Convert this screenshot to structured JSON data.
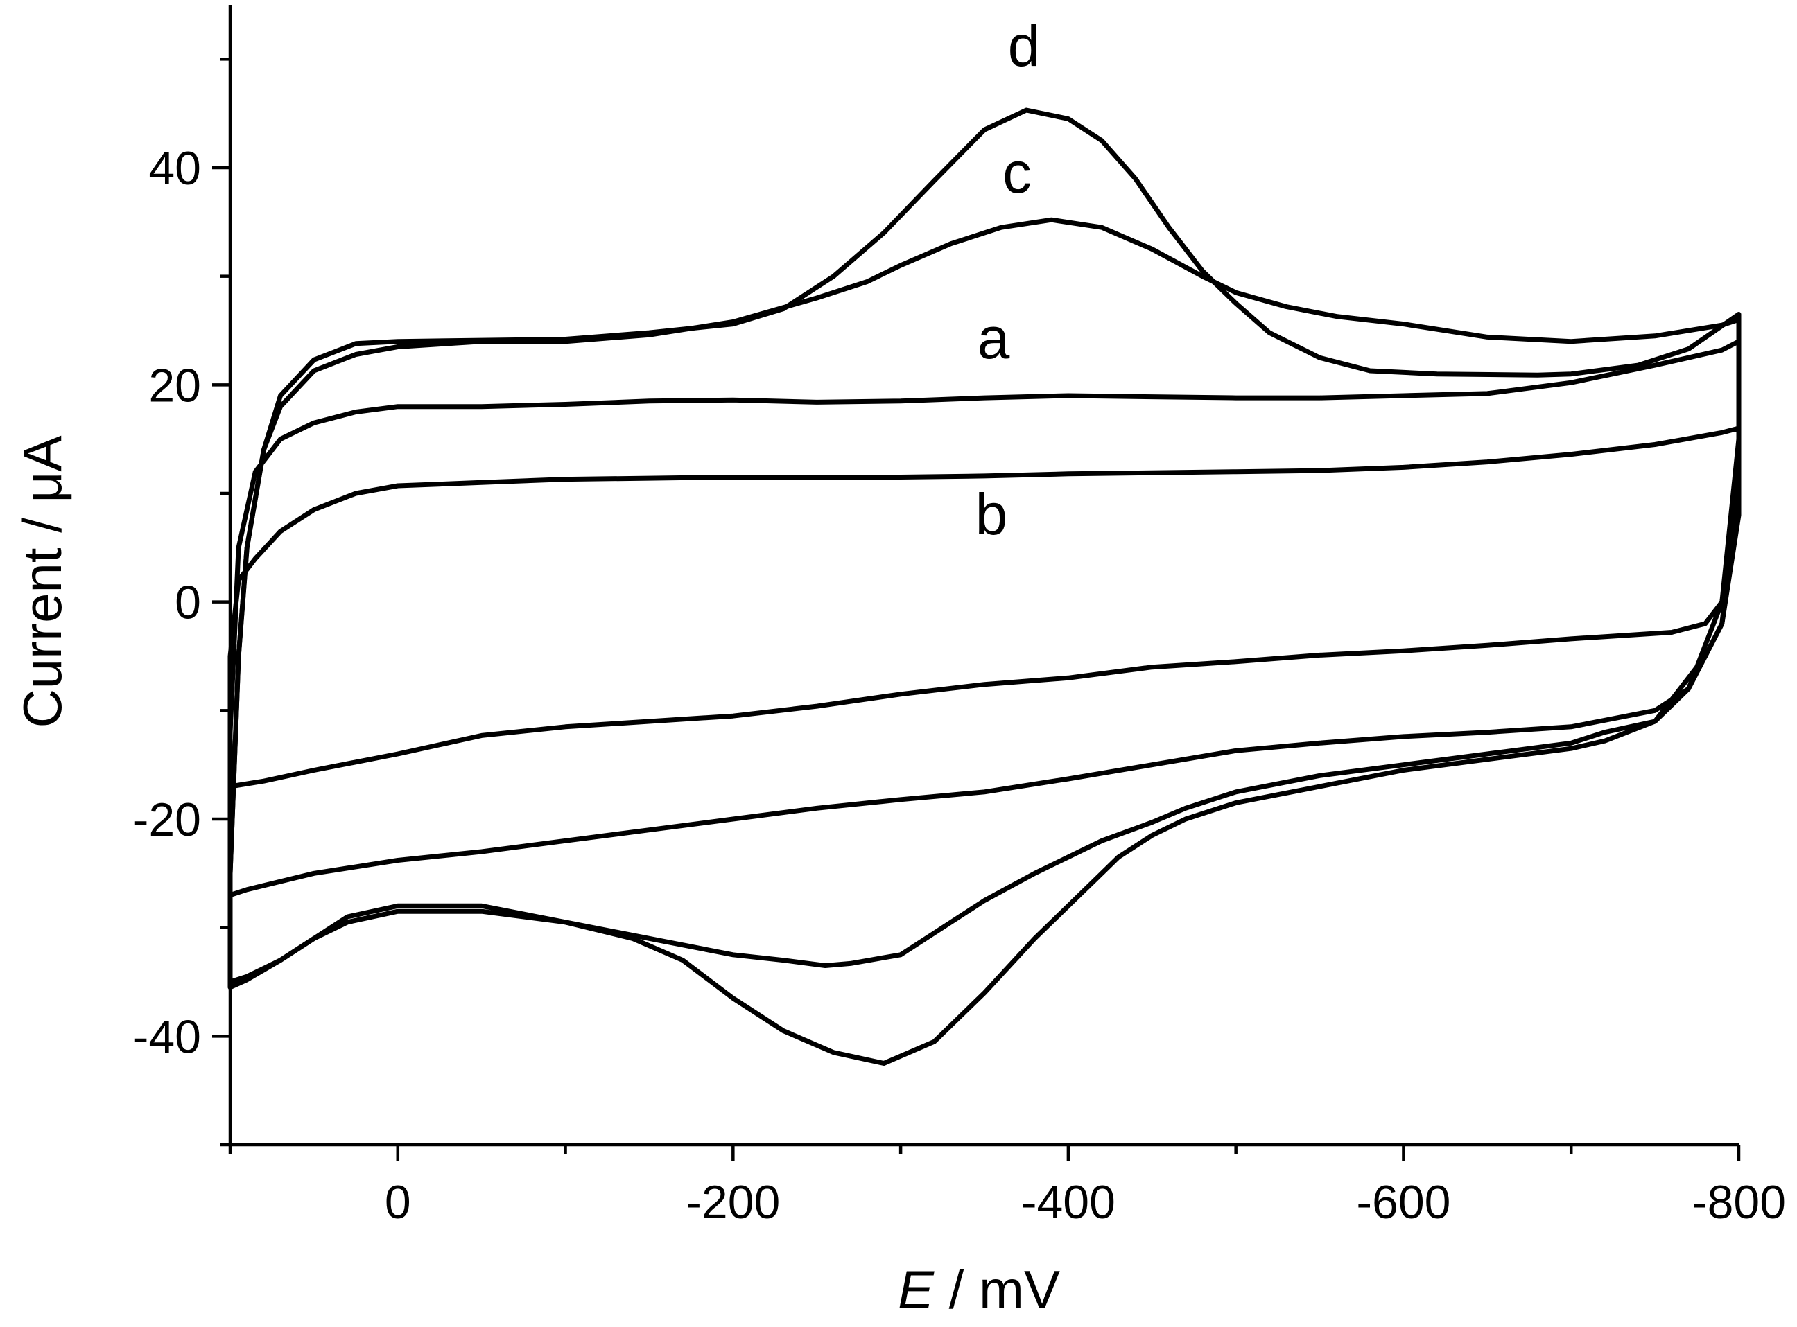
{
  "chart_data": {
    "type": "line",
    "title": "",
    "xlabel_var": "E",
    "xlabel_unit": " / mV",
    "ylabel": "Current / μA",
    "xlim": [
      100,
      -800
    ],
    "ylim": [
      -50,
      55
    ],
    "x_reversed": true,
    "x_major_ticks": [
      0,
      -200,
      -400,
      -600,
      -800
    ],
    "x_minor_ticks": [
      100,
      -100,
      -300,
      -500,
      -700
    ],
    "y_major_ticks": [
      -40,
      -20,
      0,
      20,
      40
    ],
    "y_minor_ticks": [
      -50,
      -30,
      -10,
      10,
      30,
      50
    ],
    "x_tick_labels": [
      "0",
      "-200",
      "-400",
      "-600",
      "-800"
    ],
    "y_tick_labels": [
      "-40",
      "-20",
      "0",
      "20",
      "40"
    ],
    "grid": false,
    "series": [
      {
        "label": "a",
        "forward": [
          [
            100,
            -12
          ],
          [
            95,
            5
          ],
          [
            85,
            12
          ],
          [
            70,
            15
          ],
          [
            50,
            16.5
          ],
          [
            25,
            17.5
          ],
          [
            0,
            18
          ],
          [
            -50,
            18
          ],
          [
            -100,
            18.2
          ],
          [
            -150,
            18.5
          ],
          [
            -200,
            18.6
          ],
          [
            -250,
            18.4
          ],
          [
            -300,
            18.5
          ],
          [
            -350,
            18.8
          ],
          [
            -400,
            19
          ],
          [
            -450,
            18.9
          ],
          [
            -500,
            18.8
          ],
          [
            -550,
            18.8
          ],
          [
            -600,
            19
          ],
          [
            -650,
            19.2
          ],
          [
            -700,
            20.2
          ],
          [
            -750,
            21.8
          ],
          [
            -790,
            23.2
          ],
          [
            -800,
            24
          ]
        ],
        "reverse": [
          [
            -800,
            12
          ],
          [
            -790,
            -2
          ],
          [
            -770,
            -8
          ],
          [
            -750,
            -10
          ],
          [
            -700,
            -11.5
          ],
          [
            -650,
            -12
          ],
          [
            -600,
            -12.4
          ],
          [
            -550,
            -13
          ],
          [
            -500,
            -13.7
          ],
          [
            -450,
            -15
          ],
          [
            -400,
            -16.3
          ],
          [
            -350,
            -17.5
          ],
          [
            -300,
            -18.2
          ],
          [
            -250,
            -19
          ],
          [
            -200,
            -20
          ],
          [
            -150,
            -21
          ],
          [
            -100,
            -22
          ],
          [
            -50,
            -23
          ],
          [
            0,
            -23.8
          ],
          [
            50,
            -25
          ],
          [
            90,
            -26.5
          ],
          [
            100,
            -27
          ]
        ]
      },
      {
        "label": "b",
        "forward": [
          [
            100,
            -5
          ],
          [
            95,
            2
          ],
          [
            85,
            4
          ],
          [
            70,
            6.5
          ],
          [
            50,
            8.5
          ],
          [
            25,
            10
          ],
          [
            0,
            10.7
          ],
          [
            -50,
            11
          ],
          [
            -100,
            11.3
          ],
          [
            -150,
            11.4
          ],
          [
            -200,
            11.5
          ],
          [
            -250,
            11.5
          ],
          [
            -300,
            11.5
          ],
          [
            -350,
            11.6
          ],
          [
            -400,
            11.8
          ],
          [
            -450,
            11.9
          ],
          [
            -500,
            12
          ],
          [
            -550,
            12.1
          ],
          [
            -600,
            12.4
          ],
          [
            -650,
            12.9
          ],
          [
            -700,
            13.6
          ],
          [
            -750,
            14.5
          ],
          [
            -790,
            15.6
          ],
          [
            -800,
            16
          ]
        ],
        "reverse": [
          [
            -800,
            10
          ],
          [
            -790,
            0
          ],
          [
            -780,
            -2
          ],
          [
            -760,
            -2.8
          ],
          [
            -700,
            -3.4
          ],
          [
            -650,
            -4
          ],
          [
            -600,
            -4.5
          ],
          [
            -550,
            -4.9
          ],
          [
            -500,
            -5.5
          ],
          [
            -450,
            -6
          ],
          [
            -400,
            -7
          ],
          [
            -350,
            -7.6
          ],
          [
            -300,
            -8.5
          ],
          [
            -250,
            -9.6
          ],
          [
            -200,
            -10.5
          ],
          [
            -150,
            -11
          ],
          [
            -100,
            -11.5
          ],
          [
            -50,
            -12.3
          ],
          [
            0,
            -14
          ],
          [
            50,
            -15.5
          ],
          [
            80,
            -16.5
          ],
          [
            100,
            -17
          ]
        ]
      },
      {
        "label": "c",
        "forward": [
          [
            100,
            -25
          ],
          [
            95,
            -5
          ],
          [
            90,
            5
          ],
          [
            80,
            14
          ],
          [
            70,
            18
          ],
          [
            50,
            21.3
          ],
          [
            25,
            22.8
          ],
          [
            0,
            23.5
          ],
          [
            -50,
            24
          ],
          [
            -100,
            24
          ],
          [
            -150,
            24.6
          ],
          [
            -200,
            25.8
          ],
          [
            -250,
            28
          ],
          [
            -280,
            29.5
          ],
          [
            -300,
            31
          ],
          [
            -330,
            33
          ],
          [
            -360,
            34.5
          ],
          [
            -390,
            35.2
          ],
          [
            -420,
            34.5
          ],
          [
            -450,
            32.5
          ],
          [
            -480,
            30
          ],
          [
            -500,
            28.5
          ],
          [
            -530,
            27.2
          ],
          [
            -560,
            26.3
          ],
          [
            -600,
            25.6
          ],
          [
            -650,
            24.4
          ],
          [
            -700,
            24
          ],
          [
            -750,
            24.5
          ],
          [
            -790,
            25.5
          ],
          [
            -800,
            26
          ]
        ],
        "reverse": [
          [
            -800,
            15
          ],
          [
            -790,
            0
          ],
          [
            -780,
            -4
          ],
          [
            -770,
            -8
          ],
          [
            -750,
            -11
          ],
          [
            -720,
            -12
          ],
          [
            -700,
            -13
          ],
          [
            -650,
            -14
          ],
          [
            -600,
            -15
          ],
          [
            -550,
            -16
          ],
          [
            -500,
            -17.5
          ],
          [
            -470,
            -19
          ],
          [
            -450,
            -20.3
          ],
          [
            -420,
            -22
          ],
          [
            -400,
            -23.5
          ],
          [
            -380,
            -25
          ],
          [
            -350,
            -27.5
          ],
          [
            -320,
            -30.5
          ],
          [
            -300,
            -32.5
          ],
          [
            -270,
            -33.3
          ],
          [
            -255,
            -33.5
          ],
          [
            -230,
            -33
          ],
          [
            -200,
            -32.5
          ],
          [
            -150,
            -31
          ],
          [
            -100,
            -29.5
          ],
          [
            -50,
            -28.5
          ],
          [
            0,
            -28.5
          ],
          [
            30,
            -29.5
          ],
          [
            50,
            -31
          ],
          [
            70,
            -33
          ],
          [
            90,
            -34.8
          ],
          [
            100,
            -35.5
          ]
        ]
      },
      {
        "label": "d",
        "forward": [
          [
            100,
            -25
          ],
          [
            95,
            -5
          ],
          [
            90,
            5
          ],
          [
            80,
            14
          ],
          [
            70,
            19
          ],
          [
            50,
            22.3
          ],
          [
            25,
            23.8
          ],
          [
            0,
            24
          ],
          [
            -50,
            24.1
          ],
          [
            -100,
            24.2
          ],
          [
            -150,
            24.8
          ],
          [
            -200,
            25.6
          ],
          [
            -230,
            27
          ],
          [
            -260,
            30
          ],
          [
            -290,
            34
          ],
          [
            -320,
            38.8
          ],
          [
            -350,
            43.5
          ],
          [
            -375,
            45.3
          ],
          [
            -400,
            44.5
          ],
          [
            -420,
            42.5
          ],
          [
            -440,
            39
          ],
          [
            -460,
            34.5
          ],
          [
            -480,
            30.5
          ],
          [
            -500,
            27.5
          ],
          [
            -520,
            24.8
          ],
          [
            -550,
            22.5
          ],
          [
            -580,
            21.3
          ],
          [
            -620,
            21
          ],
          [
            -680,
            20.9
          ],
          [
            -700,
            21
          ],
          [
            -740,
            21.8
          ],
          [
            -770,
            23.3
          ],
          [
            -800,
            26.5
          ]
        ],
        "reverse": [
          [
            -800,
            8
          ],
          [
            -790,
            -2
          ],
          [
            -780,
            -5
          ],
          [
            -770,
            -7
          ],
          [
            -750,
            -11
          ],
          [
            -720,
            -12.8
          ],
          [
            -700,
            -13.5
          ],
          [
            -650,
            -14.5
          ],
          [
            -600,
            -15.5
          ],
          [
            -550,
            -17
          ],
          [
            -500,
            -18.5
          ],
          [
            -470,
            -20
          ],
          [
            -450,
            -21.5
          ],
          [
            -430,
            -23.5
          ],
          [
            -410,
            -26.5
          ],
          [
            -380,
            -31
          ],
          [
            -350,
            -36
          ],
          [
            -320,
            -40.5
          ],
          [
            -290,
            -42.5
          ],
          [
            -260,
            -41.5
          ],
          [
            -230,
            -39.5
          ],
          [
            -200,
            -36.5
          ],
          [
            -170,
            -33
          ],
          [
            -140,
            -31
          ],
          [
            -100,
            -29.5
          ],
          [
            -50,
            -28
          ],
          [
            0,
            -28
          ],
          [
            30,
            -29
          ],
          [
            50,
            -31
          ],
          [
            70,
            -33
          ],
          [
            90,
            -34.5
          ],
          [
            100,
            -35
          ]
        ]
      }
    ]
  }
}
